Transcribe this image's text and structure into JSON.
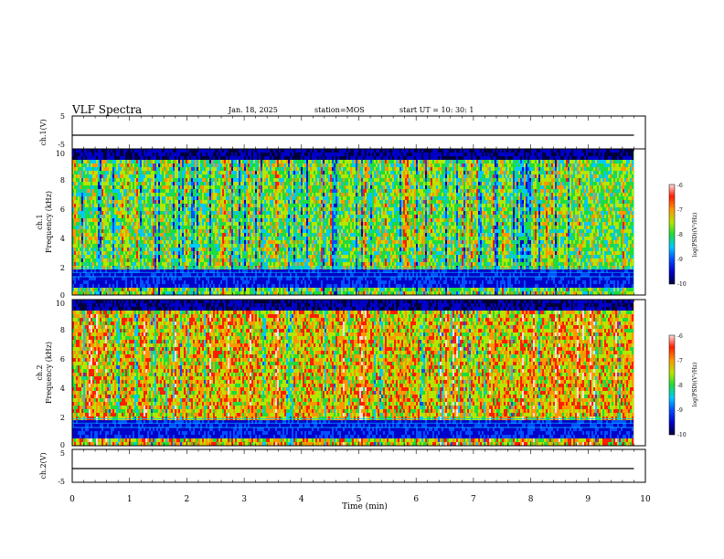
{
  "header": {
    "title": "VLF Spectra",
    "date": "Jan. 18, 2025",
    "station": "station=MOS",
    "start": "start UT =  10: 30: 1"
  },
  "panels": {
    "ch1_wave": {
      "ylabel": "ch.1(V)",
      "ticks": [
        "5",
        "-5"
      ]
    },
    "ch1_spec": {
      "ylabel_line1": "ch.1",
      "ylabel_line2": "Frequency (kHz)",
      "yticks": [
        "10",
        "8",
        "6",
        "4",
        "2",
        "0"
      ]
    },
    "ch2_spec": {
      "ylabel_line1": "ch.2",
      "ylabel_line2": "Frequency (kHz)",
      "yticks": [
        "10",
        "8",
        "6",
        "4",
        "2",
        "0"
      ]
    },
    "ch2_wave": {
      "ylabel": "ch.2(V)",
      "ticks": [
        "5",
        "-5"
      ]
    }
  },
  "xaxis": {
    "label": "Time (min)",
    "ticks": [
      "0",
      "1",
      "2",
      "3",
      "4",
      "5",
      "6",
      "7",
      "8",
      "9",
      "10"
    ]
  },
  "colorbar": {
    "label": "log(PSD)(V²/Hz)",
    "ticks": [
      "-6",
      "-7",
      "-8",
      "-9",
      "-10"
    ]
  },
  "colors": {
    "palette": [
      "#00003c",
      "#0000c8",
      "#0050ff",
      "#00c8ff",
      "#1edc3c",
      "#b4e600",
      "#ff9600",
      "#ff1e00",
      "#ffdcdc"
    ]
  },
  "chart_data": [
    {
      "type": "line",
      "name": "ch.1(V)",
      "x_unit": "min",
      "xlim": [
        0,
        10
      ],
      "ylim": [
        -5,
        5
      ],
      "data_extent_min": 9.8,
      "level": 0
    },
    {
      "type": "heatmap",
      "name": "ch.1",
      "xlim": [
        0,
        10
      ],
      "ylim_khz": [
        0,
        10
      ],
      "data_extent_min": 9.8,
      "colorscale_range": [
        -10,
        -6
      ],
      "dominant_level": -7.8
    },
    {
      "type": "heatmap",
      "name": "ch.2",
      "xlim": [
        0,
        10
      ],
      "ylim_khz": [
        0,
        10
      ],
      "data_extent_min": 9.8,
      "colorscale_range": [
        -10,
        -6
      ],
      "dominant_level": -7.2
    },
    {
      "type": "line",
      "name": "ch.2(V)",
      "x_unit": "min",
      "xlim": [
        0,
        10
      ],
      "ylim": [
        -5,
        5
      ],
      "data_extent_min": 9.8,
      "level": 0
    }
  ]
}
